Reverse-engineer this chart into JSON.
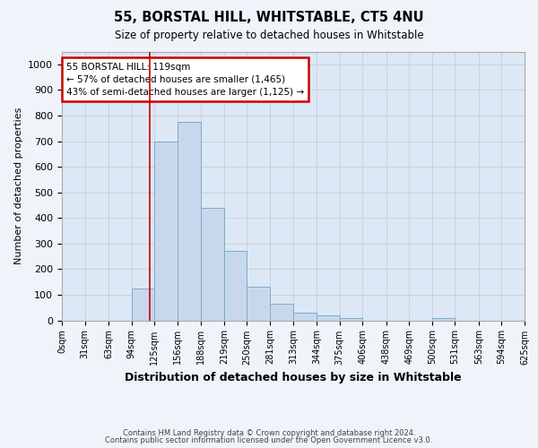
{
  "title1": "55, BORSTAL HILL, WHITSTABLE, CT5 4NU",
  "title2": "Size of property relative to detached houses in Whitstable",
  "xlabel": "Distribution of detached houses by size in Whitstable",
  "ylabel": "Number of detached properties",
  "annotation_line1": "55 BORSTAL HILL: 119sqm",
  "annotation_line2": "← 57% of detached houses are smaller (1,465)",
  "annotation_line3": "43% of semi-detached houses are larger (1,125) →",
  "footnote1": "Contains HM Land Registry data © Crown copyright and database right 2024.",
  "footnote2": "Contains public sector information licensed under the Open Government Licence v3.0.",
  "bin_edges": [
    0,
    31,
    63,
    94,
    125,
    156,
    188,
    219,
    250,
    281,
    313,
    344,
    375,
    406,
    438,
    469,
    500,
    531,
    563,
    594,
    625
  ],
  "bar_heights": [
    0,
    0,
    0,
    125,
    700,
    775,
    440,
    270,
    130,
    65,
    30,
    20,
    10,
    0,
    0,
    0,
    10,
    0,
    0,
    0
  ],
  "bar_color": "#c8d8ec",
  "bar_edge_color": "#7aabcc",
  "vline_x": 119,
  "vline_color": "#cc0000",
  "ylim": [
    0,
    1050
  ],
  "yticks": [
    0,
    100,
    200,
    300,
    400,
    500,
    600,
    700,
    800,
    900,
    1000
  ],
  "annotation_box_color": "#cc0000",
  "grid_color": "#cccccc",
  "bg_color": "#dce8f5",
  "fig_bg": "#f0f4fa"
}
